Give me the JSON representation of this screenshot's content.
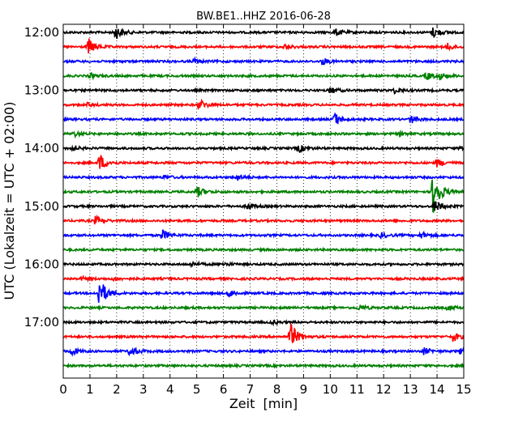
{
  "chart_data": {
    "type": "line",
    "title": "BW.BE1..HHZ 2016-06-28",
    "xlabel": "Zeit  [min]",
    "ylabel": "UTC (Lokalzeit = UTC + 02:00)",
    "xlim": [
      0,
      15
    ],
    "x_ticks": [
      "0",
      "1",
      "2",
      "3",
      "4",
      "5",
      "6",
      "7",
      "8",
      "9",
      "10",
      "11",
      "12",
      "13",
      "14",
      "15"
    ],
    "y_tick_labels": [
      "12:00",
      "13:00",
      "14:00",
      "15:00",
      "16:00",
      "17:00"
    ],
    "grid": "vertical dotted",
    "trace_colors": [
      "#000000",
      "#ff0000",
      "#0000ff",
      "#008000"
    ],
    "traces": [
      {
        "start": "12:00",
        "events": [
          [
            1.95,
            9
          ],
          [
            10.2,
            4
          ],
          [
            13.85,
            7
          ]
        ]
      },
      {
        "start": "12:15",
        "events": [
          [
            0.95,
            10
          ],
          [
            8.3,
            3
          ],
          [
            14.4,
            4
          ]
        ]
      },
      {
        "start": "12:30",
        "events": [
          [
            9.7,
            4
          ],
          [
            4.9,
            3
          ]
        ]
      },
      {
        "start": "12:45",
        "events": [
          [
            13.6,
            5
          ],
          [
            14.1,
            4
          ],
          [
            1.0,
            3
          ]
        ]
      },
      {
        "start": "13:00",
        "events": [
          [
            10.0,
            4
          ],
          [
            12.4,
            3
          ]
        ]
      },
      {
        "start": "13:15",
        "events": [
          [
            5.1,
            7
          ],
          [
            0.9,
            2
          ]
        ]
      },
      {
        "start": "13:30",
        "events": [
          [
            10.15,
            8
          ],
          [
            13.0,
            5
          ]
        ]
      },
      {
        "start": "13:45",
        "events": [
          [
            0.4,
            3
          ],
          [
            12.6,
            2
          ]
        ]
      },
      {
        "start": "14:00",
        "events": [
          [
            0.25,
            4
          ],
          [
            8.8,
            5
          ],
          [
            14.9,
            3
          ]
        ]
      },
      {
        "start": "14:15",
        "events": [
          [
            1.35,
            11
          ],
          [
            14.0,
            5
          ]
        ]
      },
      {
        "start": "14:30",
        "events": [
          [
            6.5,
            4
          ],
          [
            3.8,
            2
          ]
        ]
      },
      {
        "start": "14:45",
        "events": [
          [
            5.0,
            7
          ],
          [
            13.85,
            30
          ]
        ]
      },
      {
        "start": "15:00",
        "events": [
          [
            6.9,
            4
          ],
          [
            13.9,
            8
          ]
        ]
      },
      {
        "start": "15:15",
        "events": [
          [
            1.2,
            5
          ]
        ]
      },
      {
        "start": "15:30",
        "events": [
          [
            3.7,
            7
          ],
          [
            11.9,
            3
          ],
          [
            13.4,
            4
          ]
        ]
      },
      {
        "start": "15:45",
        "events": []
      },
      {
        "start": "16:00",
        "events": [
          [
            4.8,
            3
          ],
          [
            6.0,
            2
          ]
        ]
      },
      {
        "start": "16:15",
        "events": [
          [
            1.9,
            2
          ],
          [
            0.7,
            2
          ]
        ]
      },
      {
        "start": "16:30",
        "events": [
          [
            1.35,
            20
          ],
          [
            6.2,
            5
          ]
        ]
      },
      {
        "start": "16:45",
        "events": [
          [
            11.1,
            3
          ],
          [
            14.4,
            3
          ]
        ]
      },
      {
        "start": "17:00",
        "events": [
          [
            7.8,
            2
          ]
        ]
      },
      {
        "start": "17:15",
        "events": [
          [
            8.5,
            18
          ],
          [
            14.6,
            6
          ]
        ]
      },
      {
        "start": "17:30",
        "events": [
          [
            2.5,
            7
          ],
          [
            0.3,
            5
          ],
          [
            13.5,
            4
          ],
          [
            14.9,
            4
          ]
        ]
      },
      {
        "start": "17:45",
        "events": []
      }
    ]
  }
}
